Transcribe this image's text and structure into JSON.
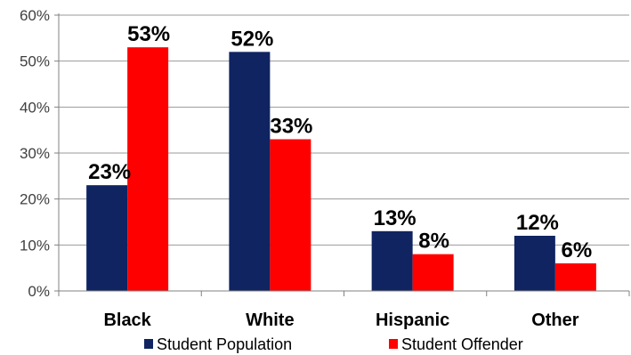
{
  "chart_data": {
    "type": "bar",
    "categories": [
      "Black",
      "White",
      "Hispanic",
      "Other"
    ],
    "series": [
      {
        "name": "Student Population",
        "values": [
          23,
          52,
          13,
          12
        ],
        "color": "#0F2461"
      },
      {
        "name": "Student Offender",
        "values": [
          53,
          33,
          8,
          6
        ],
        "color": "#FF0000"
      }
    ],
    "data_labels": [
      [
        "23%",
        "52%",
        "13%",
        "12%"
      ],
      [
        "53%",
        "33%",
        "8%",
        "6%"
      ]
    ],
    "ylim": [
      0,
      60
    ],
    "yticks": [
      0,
      10,
      20,
      30,
      40,
      50,
      60
    ],
    "ytick_labels": [
      "0%",
      "10%",
      "20%",
      "30%",
      "40%",
      "50%",
      "60%"
    ],
    "grid": true,
    "legend_position": "bottom"
  }
}
